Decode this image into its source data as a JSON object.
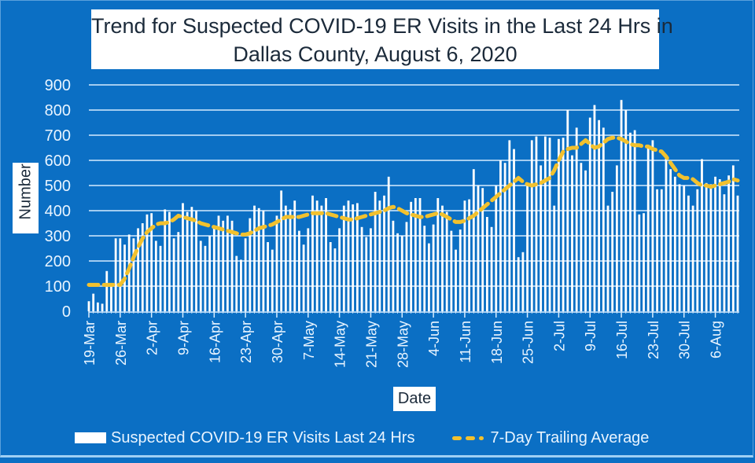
{
  "chart_data": {
    "type": "bar",
    "title": "Trend for Suspected COVID-19 ER Visits in the Last 24 Hrs in Dallas County, August 6, 2020",
    "title_lines": [
      "Trend for Suspected COVID-19 ER Visits in the Last 24 Hrs in",
      "Dallas County, August 6, 2020"
    ],
    "xlabel": "Date",
    "ylabel": "Number",
    "ylim": [
      0,
      900
    ],
    "yticks": [
      0,
      100,
      200,
      300,
      400,
      500,
      600,
      700,
      800,
      900
    ],
    "grid": true,
    "legend_position": "bottom",
    "start_date": "19-Mar",
    "end_date": "6-Aug",
    "xtick_labels": [
      "19-Mar",
      "26-Mar",
      "2-Apr",
      "9-Apr",
      "16-Apr",
      "23-Apr",
      "30-Apr",
      "7-May",
      "14-May",
      "21-May",
      "28-May",
      "4-Jun",
      "11-Jun",
      "18-Jun",
      "25-Jun",
      "2-Jul",
      "9-Jul",
      "16-Jul",
      "23-Jul",
      "30-Jul",
      "6-Aug"
    ],
    "xtick_interval_days": 7,
    "series": [
      {
        "name": "Suspected COVID-19 ER Visits Last 24 Hrs",
        "type": "bar",
        "color": "#ffffff",
        "values": [
          40,
          70,
          35,
          30,
          160,
          100,
          290,
          290,
          265,
          305,
          290,
          330,
          350,
          385,
          390,
          280,
          260,
          405,
          395,
          290,
          315,
          430,
          395,
          415,
          400,
          280,
          260,
          300,
          340,
          380,
          360,
          380,
          360,
          220,
          205,
          290,
          370,
          420,
          410,
          400,
          275,
          245,
          380,
          480,
          420,
          405,
          440,
          320,
          265,
          330,
          460,
          440,
          420,
          450,
          275,
          250,
          330,
          420,
          440,
          425,
          430,
          335,
          295,
          330,
          475,
          440,
          460,
          535,
          360,
          310,
          300,
          355,
          435,
          450,
          450,
          340,
          270,
          345,
          450,
          420,
          395,
          320,
          245,
          325,
          440,
          445,
          565,
          500,
          490,
          375,
          335,
          500,
          600,
          590,
          680,
          645,
          215,
          235,
          500,
          680,
          695,
          580,
          695,
          690,
          420,
          685,
          690,
          800,
          620,
          730,
          590,
          560,
          770,
          820,
          760,
          730,
          420,
          475,
          580,
          840,
          800,
          710,
          720,
          385,
          390,
          655,
          680,
          485,
          485,
          620,
          565,
          535,
          505,
          500,
          460,
          420,
          485,
          605,
          510,
          505,
          535,
          525,
          465,
          540,
          580,
          460
        ]
      },
      {
        "name": "7-Day Trailing Average",
        "type": "line",
        "style": "dashed",
        "color": "#f2c12e",
        "values": [
          105,
          105,
          105,
          105,
          105,
          105,
          105,
          105,
          130,
          170,
          215,
          255,
          290,
          315,
          330,
          345,
          350,
          350,
          355,
          365,
          380,
          375,
          370,
          365,
          360,
          350,
          345,
          340,
          335,
          330,
          325,
          320,
          315,
          310,
          305,
          305,
          310,
          320,
          330,
          335,
          340,
          345,
          355,
          365,
          375,
          375,
          375,
          375,
          380,
          385,
          390,
          390,
          390,
          390,
          385,
          380,
          375,
          370,
          365,
          365,
          370,
          375,
          380,
          385,
          390,
          395,
          400,
          410,
          415,
          410,
          400,
          390,
          385,
          380,
          375,
          375,
          380,
          385,
          390,
          385,
          375,
          365,
          355,
          355,
          360,
          370,
          380,
          395,
          410,
          425,
          440,
          455,
          470,
          485,
          500,
          515,
          530,
          515,
          505,
          500,
          505,
          510,
          520,
          530,
          560,
          600,
          635,
          645,
          650,
          650,
          665,
          680,
          665,
          650,
          655,
          670,
          685,
          690,
          690,
          685,
          675,
          665,
          660,
          660,
          655,
          655,
          645,
          640,
          635,
          615,
          590,
          565,
          540,
          530,
          530,
          525,
          510,
          500,
          500,
          495,
          500,
          505,
          510,
          515,
          525,
          520
        ]
      }
    ]
  },
  "legend": {
    "bars_label": "Suspected COVID-19 ER Visits Last 24 Hrs",
    "line_label": "7-Day Trailing Average"
  }
}
